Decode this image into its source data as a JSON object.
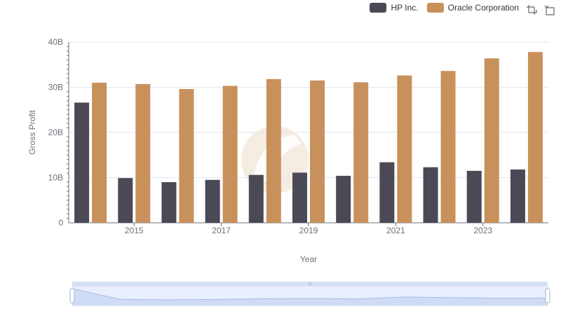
{
  "legend": {
    "items": [
      {
        "name": "HP Inc.",
        "color": "#4a4955"
      },
      {
        "name": "Oracle Corporation",
        "color": "#c8915c"
      }
    ]
  },
  "toolbox": {
    "icons": [
      "zoom-icon",
      "zoom-reset-icon"
    ]
  },
  "chart_data": {
    "type": "bar",
    "xlabel": "Year",
    "ylabel": "Gross Profit",
    "categories": [
      "2014",
      "2015",
      "2016",
      "2017",
      "2018",
      "2019",
      "2020",
      "2021",
      "2022",
      "2023",
      "2024"
    ],
    "x_tick_labels": [
      "2015",
      "2017",
      "2019",
      "2021",
      "2023"
    ],
    "y_tick_labels": [
      "0",
      "10B",
      "20B",
      "30B",
      "40B"
    ],
    "ylim": [
      0,
      40000000000
    ],
    "grid": true,
    "legend_position": "top-right",
    "series": [
      {
        "name": "HP Inc.",
        "color": "#4a4955",
        "values": [
          26600000000,
          9900000000,
          9000000000,
          9500000000,
          10600000000,
          11100000000,
          10400000000,
          13400000000,
          12300000000,
          11500000000,
          11800000000
        ]
      },
      {
        "name": "Oracle Corporation",
        "color": "#c8915c",
        "values": [
          31000000000,
          30700000000,
          29600000000,
          30300000000,
          31800000000,
          31500000000,
          31100000000,
          32600000000,
          33600000000,
          36400000000,
          37800000000
        ]
      }
    ],
    "data_zoom": {
      "start_percent": 0,
      "end_percent": 100,
      "preview_series": "Oracle Corporation"
    }
  }
}
